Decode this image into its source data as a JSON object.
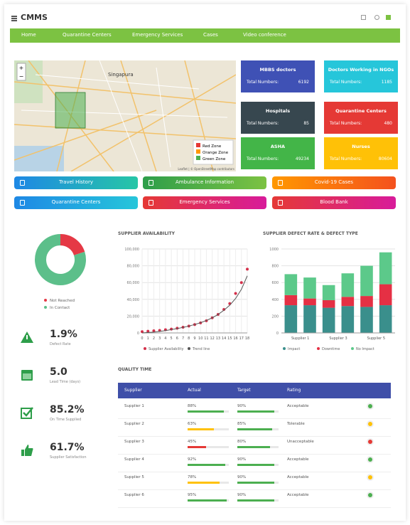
{
  "header": {
    "title": "CMMS"
  },
  "nav": [
    "Home",
    "Quarantine Centers",
    "Emergency Services",
    "Cases",
    "Video conference"
  ],
  "map": {
    "zoom": [
      "+",
      "−"
    ],
    "places": [
      "Singapura"
    ],
    "legend": [
      "Red Zone",
      "Orange Zone",
      "Green Zone"
    ],
    "legend_colors": [
      "#e53935",
      "#ff9800",
      "#4caf50"
    ],
    "attribution": "Leaflet | © OpenStreetMap contributors"
  },
  "stats": [
    {
      "title": "MBBS doctors",
      "label": "Total Numbers:",
      "value": "6192",
      "color": "#3f51b5"
    },
    {
      "title": "Doctors Working in NGOs",
      "label": "Total Numbers:",
      "value": "1185",
      "color": "#26c6da"
    },
    {
      "title": "Hospitals",
      "label": "Total Numbers:",
      "value": "85",
      "color": "#37474f"
    },
    {
      "title": "Quarantine Centers",
      "label": "Total Numbers:",
      "value": "480",
      "color": "#e53935"
    },
    {
      "title": "ASHA",
      "label": "Total Numbers:",
      "value": "49234",
      "color": "#43b548"
    },
    {
      "title": "Nurses",
      "label": "Total Numbers:",
      "value": "80604",
      "color": "#ffc107"
    }
  ],
  "buttons": [
    {
      "label": "Travel History",
      "colors": [
        "#1e88e5",
        "#26c6a6"
      ]
    },
    {
      "label": "Ambulance Information",
      "colors": [
        "#2e9e4a",
        "#7cc242"
      ]
    },
    {
      "label": "Covid-19 Cases",
      "colors": [
        "#ff9800",
        "#f4511e"
      ]
    },
    {
      "label": "Quarantine Centers",
      "colors": [
        "#1e88e5",
        "#26c6da"
      ]
    },
    {
      "label": "Emergency Services",
      "colors": [
        "#e53935",
        "#d81b9a"
      ]
    },
    {
      "label": "Blood Bank",
      "colors": [
        "#e53935",
        "#d81b9a"
      ]
    }
  ],
  "chart_data": [
    {
      "type": "pie",
      "categories": [
        "Not Reached",
        "In Contact"
      ],
      "values": [
        20,
        80
      ],
      "colors": [
        "#e53945",
        "#5cbf8a"
      ]
    },
    {
      "type": "line",
      "title": "SUPPLIER AVAILABILITY",
      "x": [
        0,
        1,
        2,
        3,
        4,
        5,
        6,
        7,
        8,
        9,
        10,
        11,
        12,
        13,
        14,
        15,
        16,
        17,
        18
      ],
      "series": [
        {
          "name": "Supplier Availability",
          "color": "#d32f4a",
          "mode": "markers",
          "values": [
            1500,
            2000,
            2500,
            3000,
            3800,
            4600,
            5600,
            6800,
            8200,
            10000,
            12000,
            14500,
            18000,
            22000,
            28000,
            35000,
            47000,
            60000,
            76000
          ]
        },
        {
          "name": "Trend line",
          "color": "#555555",
          "mode": "line",
          "values": [
            0,
            500,
            1000,
            1800,
            2800,
            4000,
            5200,
            6600,
            8200,
            10000,
            12200,
            14800,
            18000,
            22000,
            27000,
            33000,
            41000,
            52000,
            68000
          ]
        }
      ],
      "xlim": [
        0,
        18
      ],
      "xticks": [
        0,
        1,
        2,
        3,
        4,
        5,
        6,
        7,
        8,
        9,
        10,
        11,
        12,
        13,
        14,
        15,
        16,
        17,
        18
      ],
      "ylim": [
        0,
        100000
      ],
      "yticks": [
        0,
        {
          "value": 20000,
          "label": "20,000"
        },
        {
          "value": 40000,
          "label": "40,000"
        },
        {
          "value": 60000,
          "label": "60,000"
        },
        {
          "value": 80000,
          "label": "80,000"
        },
        {
          "value": 100000,
          "label": "100,000"
        }
      ],
      "grid": true
    },
    {
      "type": "bar",
      "title": "SUPPLIER DEFECT RATE & DEFECT TYPE",
      "stacked": true,
      "categories": [
        "Supplier 1",
        null,
        "Supplier 3",
        null,
        "Supplier 5",
        null
      ],
      "series": [
        {
          "name": "Impact",
          "color": "#3a8f8c",
          "values": [
            330,
            330,
            300,
            320,
            310,
            330
          ]
        },
        {
          "name": "Downtime",
          "color": "#e53044",
          "values": [
            120,
            80,
            90,
            110,
            130,
            250
          ]
        },
        {
          "name": "No Impact",
          "color": "#5cc98a",
          "values": [
            250,
            250,
            180,
            280,
            360,
            380
          ]
        }
      ],
      "ylim": [
        0,
        1000
      ],
      "yticks": [
        0,
        200,
        400,
        600,
        800,
        1000
      ],
      "grid": true
    }
  ],
  "metrics": [
    {
      "value": "1.9%",
      "label": "Defect Rate"
    },
    {
      "value": "5.0",
      "label": "Lead Time (days)"
    },
    {
      "value": "85.2%",
      "label": "On Time Supplied"
    },
    {
      "value": "61.7%",
      "label": "Supplier Satisfaction"
    }
  ],
  "table": {
    "title": "QUALITY TIME",
    "columns": [
      "Supplier",
      "Actual",
      "Target",
      "Rating"
    ],
    "rows": [
      [
        "Supplier 1",
        "88%",
        "90%",
        "Acceptable"
      ],
      [
        "Supplier 2",
        "63%",
        "85%",
        "Tolerable"
      ],
      [
        "Supplier 3",
        "45%",
        "80%",
        "Unacceptable"
      ],
      [
        "Supplier 4",
        "92%",
        "90%",
        "Acceptable"
      ],
      [
        "Supplier 5",
        "78%",
        "90%",
        "Acceptable"
      ],
      [
        "Supplier 6",
        "95%",
        "90%",
        "Acceptable"
      ]
    ],
    "row_colors": [
      "#4caf50",
      "#ffc107",
      "#e53935",
      "#4caf50",
      "#ffc107",
      "#4caf50"
    ]
  }
}
